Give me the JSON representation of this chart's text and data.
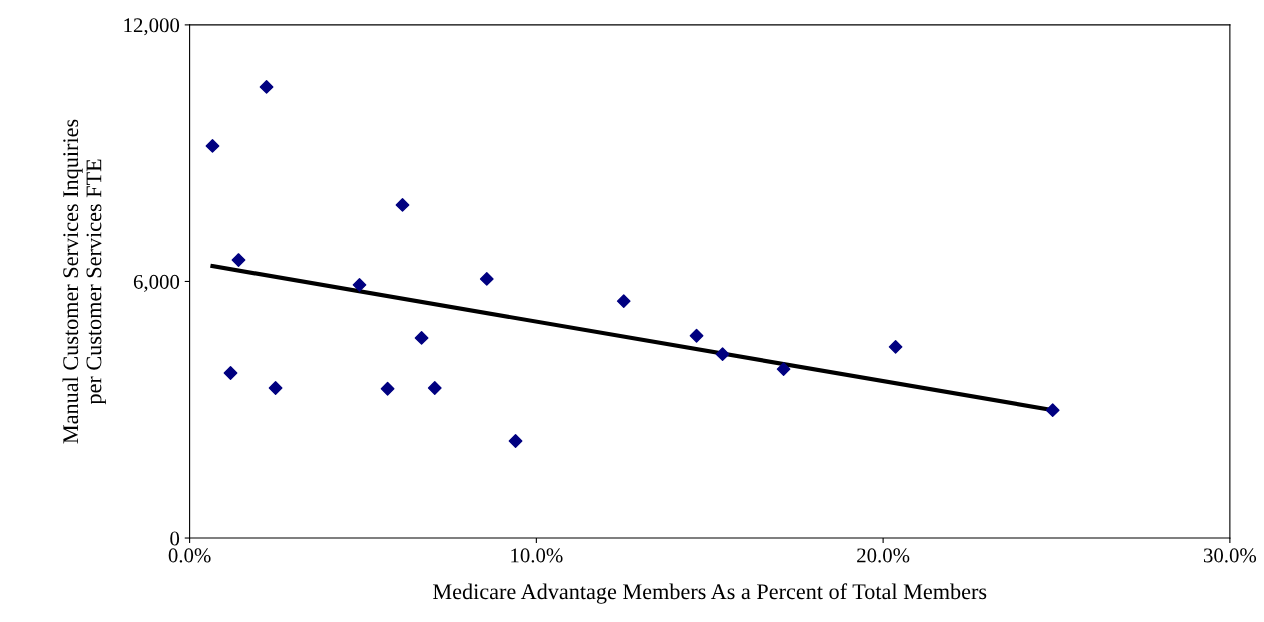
{
  "chart_data": {
    "type": "scatter",
    "xlabel": "Medicare Advantage Members As a Percent of Total Members",
    "ylabel": "Manual Customer Services Inquiries\nper Customer Services FTE",
    "xlim": [
      0,
      30
    ],
    "xticks": [
      {
        "value": 0,
        "label": "0.0%"
      },
      {
        "value": 10,
        "label": "10.0%"
      },
      {
        "value": 20,
        "label": "20.0%"
      },
      {
        "value": 30,
        "label": "30.0%"
      }
    ],
    "ylim": [
      0,
      12000
    ],
    "yticks": [
      {
        "value": 0,
        "label": "0"
      },
      {
        "value": 6000,
        "label": "6,000"
      },
      {
        "value": 12000,
        "label": "12,000"
      }
    ],
    "grid": false,
    "legend": false,
    "marker": "diamond",
    "series": [
      {
        "color": "#000080",
        "x": [
          0.66,
          2.22,
          1.41,
          1.18,
          2.48,
          4.9,
          6.14,
          5.71,
          6.69,
          7.07,
          8.57,
          9.4,
          12.52,
          14.62,
          15.37,
          17.13,
          20.36,
          24.89
        ],
        "values": [
          9170,
          10550,
          6500,
          3860,
          3510,
          5920,
          7790,
          3490,
          4680,
          3510,
          6060,
          2270,
          5540,
          4730,
          4300,
          3950,
          4470,
          2990
        ]
      },
      {
        "type": "line",
        "color": "#000000",
        "marker": "none",
        "x": [
          0.66,
          24.89
        ],
        "values": [
          6360,
          2990
        ]
      }
    ]
  }
}
